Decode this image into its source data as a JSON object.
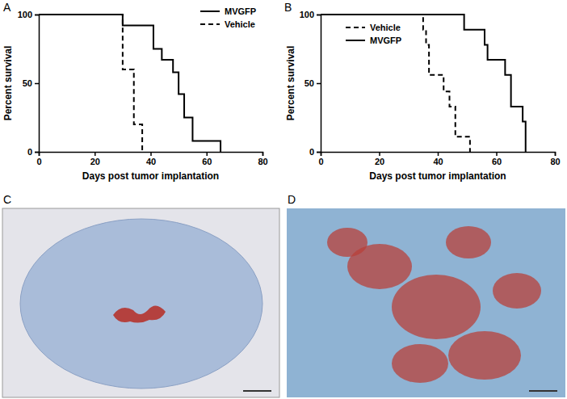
{
  "chart_data": [
    {
      "type": "line",
      "panel_label": "A",
      "x_label": "Days post tumor implantation",
      "y_label": "Percent survival",
      "xlim": [
        0,
        80
      ],
      "xticks": [
        0,
        20,
        40,
        60,
        80
      ],
      "ylim": [
        0,
        100
      ],
      "yticks": [
        0,
        50,
        100
      ],
      "legend": "top-right",
      "series": [
        {
          "name": "MVGFP",
          "color": "#000000",
          "line_style": "solid",
          "x": [
            0,
            30,
            41,
            44,
            48,
            50,
            52,
            55,
            65
          ],
          "values": [
            100,
            92,
            75,
            67,
            58,
            42,
            25,
            8,
            0
          ]
        },
        {
          "name": "Vehicle",
          "color": "#000000",
          "line_style": "dashed",
          "x": [
            0,
            30,
            34,
            37
          ],
          "values": [
            100,
            60,
            20,
            0
          ]
        }
      ]
    },
    {
      "type": "line",
      "panel_label": "B",
      "x_label": "Days post tumor implantation",
      "y_label": "Percent survival",
      "xlim": [
        0,
        80
      ],
      "xticks": [
        0,
        20,
        40,
        60,
        80
      ],
      "ylim": [
        0,
        100
      ],
      "yticks": [
        0,
        50,
        100
      ],
      "legend": "top-left",
      "series": [
        {
          "name": "Vehicle",
          "color": "#000000",
          "line_style": "dashed",
          "x": [
            0,
            35,
            36,
            37,
            42,
            44,
            46,
            51
          ],
          "values": [
            100,
            89,
            78,
            56,
            44,
            33,
            11,
            0
          ]
        },
        {
          "name": "MVGFP",
          "color": "#000000",
          "line_style": "solid",
          "x": [
            0,
            49,
            56,
            57,
            63,
            65,
            69,
            70
          ],
          "values": [
            100,
            89,
            78,
            67,
            56,
            33,
            22,
            0
          ]
        }
      ]
    }
  ],
  "images": [
    {
      "panel_label": "C"
    },
    {
      "panel_label": "D"
    }
  ]
}
